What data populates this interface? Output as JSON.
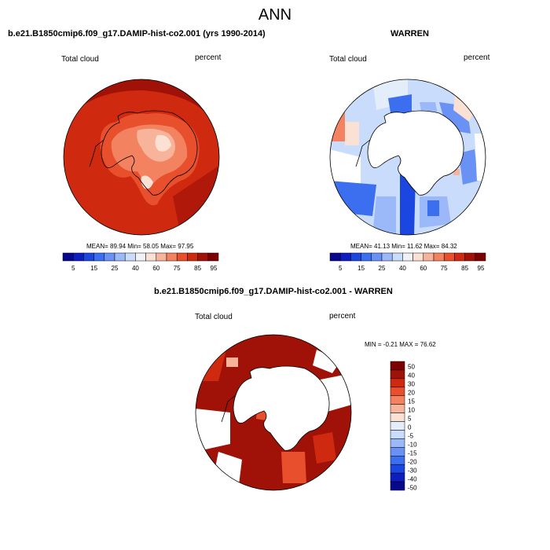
{
  "title": "ANN",
  "colors": {
    "full": [
      "#08088c",
      "#0c1ec0",
      "#1b46e0",
      "#3c6ef0",
      "#6a92f5",
      "#9bb8f8",
      "#c9dcfb",
      "#f0f2f8",
      "#fbe0d4",
      "#f7b49a",
      "#f28260",
      "#e84f2c",
      "#cf2a10",
      "#a01208",
      "#7d0000"
    ],
    "diff": [
      "#08088c",
      "#0c1ec0",
      "#1b46e0",
      "#3c6ef0",
      "#6a92f5",
      "#9bb8f8",
      "#c9dcfb",
      "#e4eefb",
      "#fbe0d4",
      "#f7b49a",
      "#f28260",
      "#e84f2c",
      "#cf2a10",
      "#a01208",
      "#7d0000"
    ]
  },
  "panels": {
    "p1": {
      "title": "b.e21.B1850cmip6.f09_g17.DAMIP-hist-co2.001 (yrs 1990-2014)",
      "field": "Total cloud",
      "units": "percent",
      "stats": "MEAN=  89.94  Min=  58.05  Max=  97.95"
    },
    "p2": {
      "title": "WARREN",
      "field": "Total cloud",
      "units": "percent",
      "stats": "MEAN=  41.13  Min=  11.62  Max=  84.32"
    },
    "p3": {
      "title": "b.e21.B1850cmip6.f09_g17.DAMIP-hist-co2.001 - WARREN",
      "field": "Total cloud",
      "units": "percent",
      "stats": "MIN =  -0.21 MAX =  76.62"
    }
  },
  "colorbar_h": {
    "ticks": [
      "5",
      "15",
      "25",
      "40",
      "60",
      "75",
      "85",
      "95"
    ]
  },
  "colorbar_v": {
    "ticks": [
      "50",
      "40",
      "30",
      "20",
      "15",
      "10",
      "5",
      "0",
      "-5",
      "-10",
      "-15",
      "-20",
      "-30",
      "-40",
      "-50"
    ]
  }
}
